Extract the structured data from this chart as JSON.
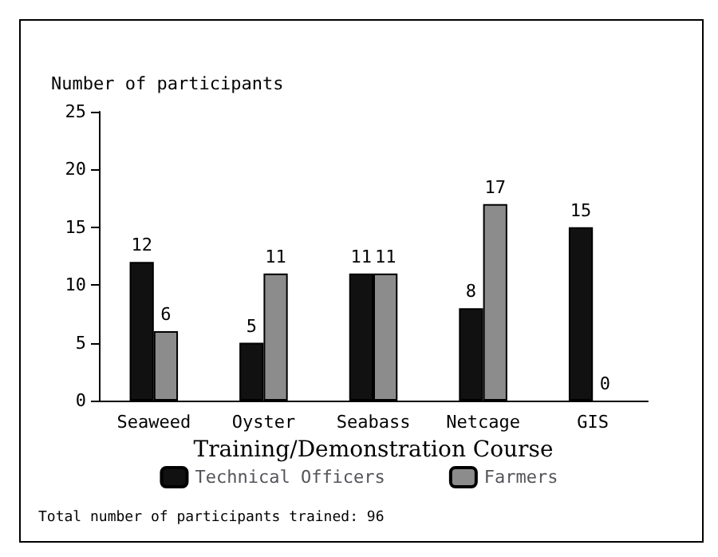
{
  "chart_data": {
    "type": "bar",
    "ylabel": "Number of participants",
    "xlabel": "Training/Demonstration Course",
    "categories": [
      "Seaweed",
      "Oyster",
      "Seabass",
      "Netcage",
      "GIS"
    ],
    "series": [
      {
        "name": "Technical Officers",
        "color": "#111111",
        "values": [
          12,
          5,
          11,
          8,
          15
        ]
      },
      {
        "name": "Farmers",
        "color": "#8c8c8c",
        "values": [
          6,
          11,
          11,
          17,
          0
        ]
      }
    ],
    "ylim": [
      0,
      25
    ],
    "yticks": [
      0,
      5,
      10,
      15,
      20,
      25
    ],
    "grid": false,
    "legend": "bottom",
    "data_labels": true,
    "annotations": [
      "Total number of participants trained: 96"
    ]
  }
}
